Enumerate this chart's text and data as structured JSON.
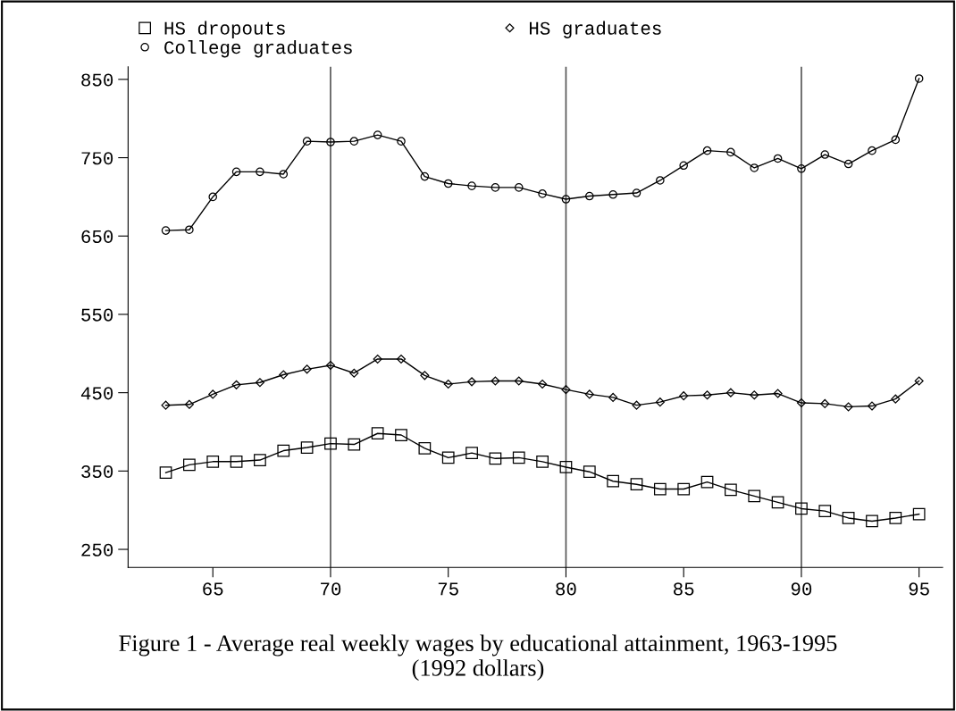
{
  "chart_data": {
    "type": "line",
    "title": "Figure 1 - Average real weekly wages by educational attainment, 1963-1995\n(1992 dollars)",
    "x": [
      63,
      64,
      65,
      66,
      67,
      68,
      69,
      70,
      71,
      72,
      73,
      74,
      75,
      76,
      77,
      78,
      79,
      80,
      81,
      82,
      83,
      84,
      85,
      86,
      87,
      88,
      89,
      90,
      91,
      92,
      93,
      94,
      95
    ],
    "series": [
      {
        "name": "HS dropouts",
        "color": "#000000",
        "marker": "square",
        "values": [
          348,
          358,
          362,
          362,
          364,
          376,
          380,
          385,
          384,
          398,
          396,
          379,
          367,
          373,
          366,
          367,
          362,
          355,
          349,
          337,
          333,
          327,
          327,
          336,
          326,
          318,
          310,
          302,
          299,
          290,
          286,
          290,
          295
        ]
      },
      {
        "name": "HS graduates",
        "color": "#000000",
        "marker": "diamond",
        "values": [
          434,
          435,
          448,
          460,
          463,
          473,
          480,
          485,
          475,
          493,
          493,
          472,
          461,
          464,
          465,
          465,
          461,
          454,
          448,
          444,
          434,
          438,
          446,
          447,
          450,
          447,
          449,
          437,
          436,
          432,
          433,
          442,
          465
        ]
      },
      {
        "name": "College graduates",
        "color": "#000000",
        "marker": "circle",
        "values": [
          657,
          658,
          700,
          732,
          732,
          729,
          771,
          770,
          771,
          779,
          771,
          726,
          717,
          714,
          712,
          712,
          704,
          697,
          701,
          703,
          705,
          721,
          740,
          759,
          757,
          737,
          749,
          736,
          754,
          742,
          759,
          773,
          851
        ]
      }
    ],
    "xlim": [
      61.4,
      96
    ],
    "ylim": [
      227,
      866
    ],
    "xticks": [
      65,
      70,
      75,
      80,
      85,
      90,
      95
    ],
    "yticks": [
      250,
      350,
      450,
      550,
      650,
      750,
      850
    ],
    "ref_lines": [
      {
        "axis": "x",
        "value": 70,
        "color": "#555555"
      },
      {
        "axis": "x",
        "value": 80,
        "color": "#555555"
      },
      {
        "axis": "x",
        "value": 90,
        "color": "#555555"
      }
    ],
    "grid": false,
    "legend": "top",
    "line_style": "solid"
  }
}
